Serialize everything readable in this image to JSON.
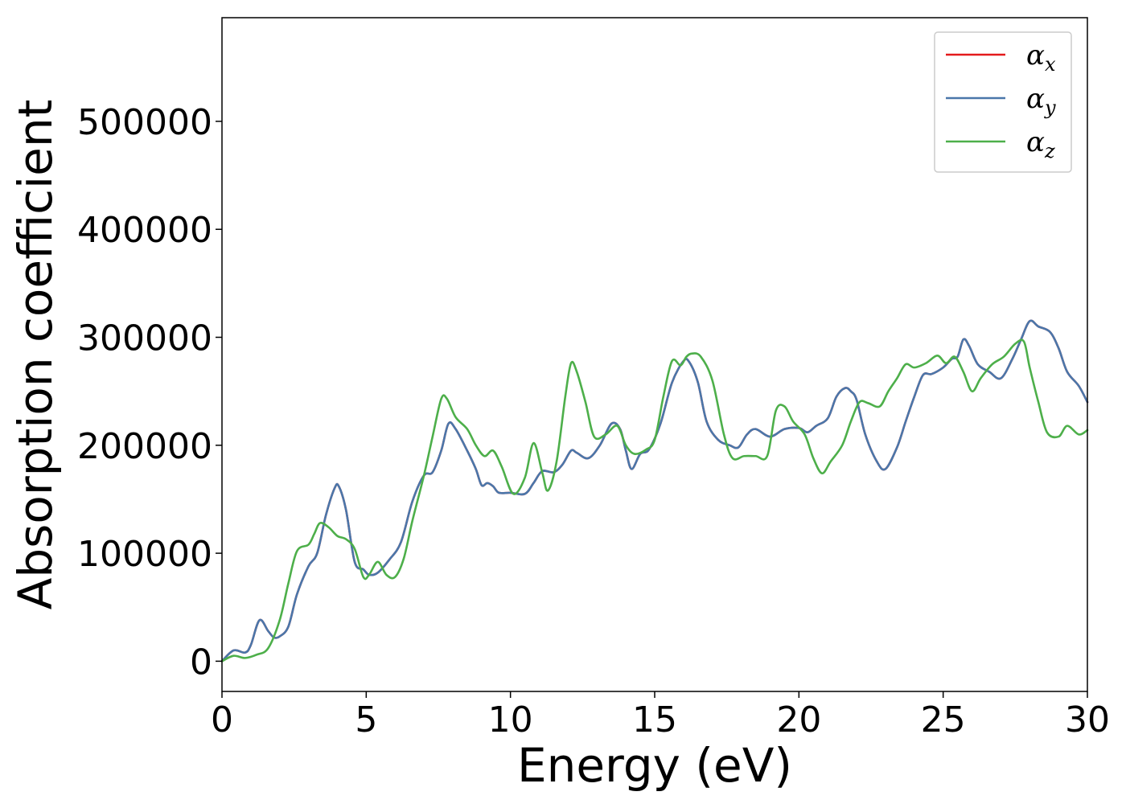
{
  "chart_data": {
    "type": "line",
    "xlabel": "Energy (eV)",
    "ylabel": "Absorption coefficient",
    "xlim": [
      0,
      30
    ],
    "ylim": [
      -28000,
      596000
    ],
    "xticks": [
      0,
      5,
      10,
      15,
      20,
      25,
      30
    ],
    "yticks": [
      0,
      100000,
      200000,
      300000,
      400000,
      500000
    ],
    "grid": false,
    "legend_position": "top-right",
    "series": [
      {
        "name": "x",
        "legend_symbol": "α",
        "legend_subscript": "x",
        "color": "#e41a1c",
        "hidden_behind": "y",
        "x": [
          0,
          0.4,
          0.8,
          1.0,
          1.3,
          1.6,
          1.8,
          2.0,
          2.3,
          2.6,
          3.0,
          3.3,
          3.6,
          3.9,
          4.05,
          4.3,
          4.6,
          4.9,
          5.1,
          5.4,
          5.8,
          6.2,
          6.6,
          7.0,
          7.3,
          7.6,
          7.85,
          8.1,
          8.5,
          8.8,
          9.0,
          9.2,
          9.4,
          9.6,
          10.0,
          10.5,
          10.8,
          11.1,
          11.5,
          11.8,
          12.1,
          12.3,
          12.7,
          13.1,
          13.5,
          13.8,
          14.0,
          14.2,
          14.5,
          14.8,
          15.2,
          15.6,
          16.0,
          16.2,
          16.5,
          16.8,
          17.2,
          17.6,
          17.9,
          18.2,
          18.5,
          19.0,
          19.5,
          20.0,
          20.3,
          20.6,
          21.0,
          21.3,
          21.6,
          21.8,
          22.0,
          22.3,
          22.7,
          23.0,
          23.4,
          23.7,
          24.0,
          24.3,
          24.6,
          25.0,
          25.3,
          25.5,
          25.7,
          25.9,
          26.2,
          26.6,
          27.0,
          27.4,
          27.7,
          28.0,
          28.3,
          28.7,
          29.0,
          29.3,
          29.7,
          30.0
        ],
        "y": [
          0,
          10000,
          8000,
          15000,
          38000,
          28000,
          22000,
          23000,
          32000,
          62000,
          88000,
          100000,
          135000,
          160000,
          162000,
          140000,
          92000,
          85000,
          80000,
          82000,
          94000,
          110000,
          148000,
          172000,
          175000,
          195000,
          220000,
          215000,
          195000,
          178000,
          163000,
          165000,
          162000,
          156000,
          156000,
          155000,
          165000,
          176000,
          175000,
          182000,
          195000,
          193000,
          188000,
          200000,
          220000,
          215000,
          195000,
          178000,
          192000,
          196000,
          220000,
          258000,
          278000,
          277000,
          258000,
          222000,
          205000,
          200000,
          198000,
          210000,
          215000,
          208000,
          215000,
          216000,
          212000,
          218000,
          225000,
          245000,
          253000,
          250000,
          242000,
          210000,
          185000,
          178000,
          198000,
          222000,
          245000,
          265000,
          266000,
          272000,
          280000,
          282000,
          298000,
          292000,
          275000,
          268000,
          262000,
          280000,
          298000,
          315000,
          310000,
          305000,
          290000,
          268000,
          255000,
          240000
        ]
      },
      {
        "name": "y",
        "legend_symbol": "α",
        "legend_subscript": "y",
        "color": "#4a77aa",
        "x": [
          0,
          0.4,
          0.8,
          1.0,
          1.3,
          1.6,
          1.8,
          2.0,
          2.3,
          2.6,
          3.0,
          3.3,
          3.6,
          3.9,
          4.05,
          4.3,
          4.6,
          4.9,
          5.1,
          5.4,
          5.8,
          6.2,
          6.6,
          7.0,
          7.3,
          7.6,
          7.85,
          8.1,
          8.5,
          8.8,
          9.0,
          9.2,
          9.4,
          9.6,
          10.0,
          10.5,
          10.8,
          11.1,
          11.5,
          11.8,
          12.1,
          12.3,
          12.7,
          13.1,
          13.5,
          13.8,
          14.0,
          14.2,
          14.5,
          14.8,
          15.2,
          15.6,
          16.0,
          16.2,
          16.5,
          16.8,
          17.2,
          17.6,
          17.9,
          18.2,
          18.5,
          19.0,
          19.5,
          20.0,
          20.3,
          20.6,
          21.0,
          21.3,
          21.6,
          21.8,
          22.0,
          22.3,
          22.7,
          23.0,
          23.4,
          23.7,
          24.0,
          24.3,
          24.6,
          25.0,
          25.3,
          25.5,
          25.7,
          25.9,
          26.2,
          26.6,
          27.0,
          27.4,
          27.7,
          28.0,
          28.3,
          28.7,
          29.0,
          29.3,
          29.7,
          30.0
        ],
        "y": [
          0,
          10000,
          8000,
          15000,
          38000,
          28000,
          22000,
          23000,
          32000,
          62000,
          88000,
          100000,
          135000,
          160000,
          162000,
          140000,
          92000,
          85000,
          80000,
          82000,
          94000,
          110000,
          148000,
          172000,
          175000,
          195000,
          220000,
          215000,
          195000,
          178000,
          163000,
          165000,
          162000,
          156000,
          156000,
          155000,
          165000,
          176000,
          175000,
          182000,
          195000,
          193000,
          188000,
          200000,
          220000,
          215000,
          195000,
          178000,
          192000,
          196000,
          220000,
          258000,
          278000,
          277000,
          258000,
          222000,
          205000,
          200000,
          198000,
          210000,
          215000,
          208000,
          215000,
          216000,
          212000,
          218000,
          225000,
          245000,
          253000,
          250000,
          242000,
          210000,
          185000,
          178000,
          198000,
          222000,
          245000,
          265000,
          266000,
          272000,
          280000,
          282000,
          298000,
          292000,
          275000,
          268000,
          262000,
          280000,
          298000,
          315000,
          310000,
          305000,
          290000,
          268000,
          255000,
          240000
        ]
      },
      {
        "name": "z",
        "legend_symbol": "α",
        "legend_subscript": "z",
        "color": "#4daf4a",
        "x": [
          0,
          0.4,
          0.8,
          1.2,
          1.6,
          2.0,
          2.3,
          2.6,
          3.0,
          3.2,
          3.4,
          3.7,
          4.0,
          4.3,
          4.6,
          4.9,
          5.1,
          5.4,
          5.7,
          6.0,
          6.3,
          6.6,
          7.0,
          7.3,
          7.6,
          7.8,
          8.1,
          8.5,
          8.8,
          9.1,
          9.4,
          9.7,
          10.1,
          10.5,
          10.8,
          11.1,
          11.3,
          11.6,
          11.9,
          12.1,
          12.3,
          12.6,
          12.9,
          13.3,
          13.7,
          14.0,
          14.3,
          14.7,
          15.0,
          15.3,
          15.6,
          15.9,
          16.1,
          16.3,
          16.6,
          17.0,
          17.4,
          17.7,
          18.1,
          18.5,
          18.9,
          19.2,
          19.5,
          19.8,
          20.2,
          20.5,
          20.8,
          21.1,
          21.5,
          21.8,
          22.1,
          22.4,
          22.8,
          23.1,
          23.4,
          23.7,
          24.0,
          24.4,
          24.8,
          25.1,
          25.4,
          25.7,
          26.0,
          26.3,
          26.7,
          27.1,
          27.5,
          27.8,
          28.0,
          28.3,
          28.6,
          29.0,
          29.3,
          29.7,
          30.0
        ],
        "y": [
          0,
          5000,
          3000,
          6000,
          12000,
          38000,
          72000,
          102000,
          108000,
          118000,
          128000,
          124000,
          116000,
          113000,
          104000,
          78000,
          80000,
          92000,
          80000,
          78000,
          95000,
          130000,
          172000,
          208000,
          243000,
          243000,
          226000,
          215000,
          200000,
          190000,
          195000,
          180000,
          155000,
          170000,
          202000,
          175000,
          158000,
          185000,
          245000,
          276000,
          268000,
          240000,
          208000,
          210000,
          218000,
          200000,
          192000,
          196000,
          205000,
          245000,
          278000,
          274000,
          282000,
          285000,
          282000,
          260000,
          210000,
          188000,
          190000,
          190000,
          190000,
          232000,
          236000,
          222000,
          210000,
          188000,
          174000,
          185000,
          200000,
          222000,
          240000,
          239000,
          236000,
          250000,
          262000,
          275000,
          272000,
          276000,
          283000,
          276000,
          282000,
          268000,
          250000,
          262000,
          275000,
          282000,
          294000,
          296000,
          272000,
          240000,
          212000,
          208000,
          218000,
          210000,
          214000
        ]
      }
    ]
  }
}
